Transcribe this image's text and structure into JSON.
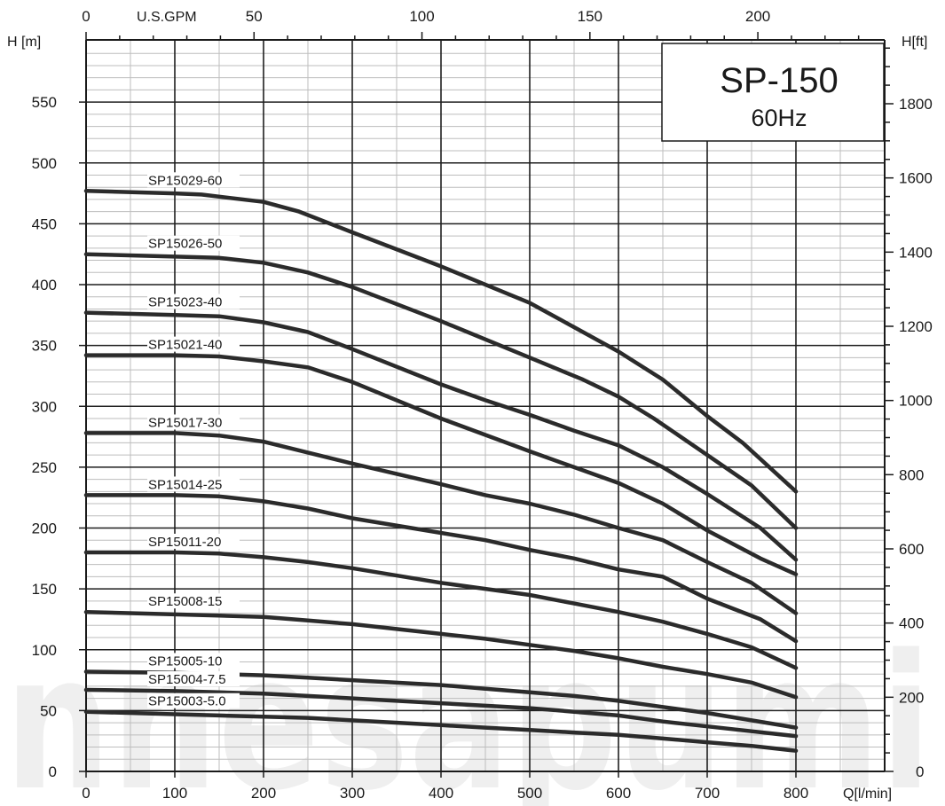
{
  "chart_data": {
    "type": "line",
    "title": "SP-150",
    "subtitle": "60Hz",
    "xlabel": "Q[l/min]",
    "ylabel": "H [m]",
    "ylabel_right": "H[ft]",
    "xlabel_top": "U.S.GPM",
    "xlim": [
      0,
      900
    ],
    "ylim": [
      0,
      600
    ],
    "x_ticks": [
      "0",
      "100",
      "200",
      "300",
      "400",
      "500",
      "600",
      "700",
      "800"
    ],
    "y_ticks": [
      "0",
      "50",
      "100",
      "150",
      "200",
      "250",
      "300",
      "350",
      "400",
      "450",
      "500",
      "550"
    ],
    "gpm_ticks": [
      "0",
      "50",
      "100",
      "150",
      "200"
    ],
    "ft_ticks": [
      "0",
      "200",
      "400",
      "600",
      "800",
      "1000",
      "1200",
      "1400",
      "1600",
      "1800"
    ],
    "grid": true,
    "series": [
      {
        "name": "SP15029-60",
        "points": [
          [
            0,
            477
          ],
          [
            100,
            475
          ],
          [
            130,
            474
          ],
          [
            200,
            468
          ],
          [
            240,
            460
          ],
          [
            300,
            443
          ],
          [
            400,
            415
          ],
          [
            500,
            385
          ],
          [
            550,
            365
          ],
          [
            600,
            345
          ],
          [
            650,
            322
          ],
          [
            700,
            292
          ],
          [
            740,
            270
          ],
          [
            800,
            230
          ]
        ]
      },
      {
        "name": "SP15026-50",
        "points": [
          [
            0,
            425
          ],
          [
            100,
            423
          ],
          [
            150,
            422
          ],
          [
            200,
            418
          ],
          [
            250,
            410
          ],
          [
            300,
            398
          ],
          [
            400,
            370
          ],
          [
            500,
            340
          ],
          [
            560,
            322
          ],
          [
            600,
            308
          ],
          [
            640,
            290
          ],
          [
            700,
            260
          ],
          [
            750,
            235
          ],
          [
            800,
            200
          ]
        ]
      },
      {
        "name": "SP15023-40",
        "points": [
          [
            0,
            377
          ],
          [
            100,
            375
          ],
          [
            150,
            374
          ],
          [
            200,
            369
          ],
          [
            250,
            361
          ],
          [
            300,
            347
          ],
          [
            400,
            318
          ],
          [
            450,
            305
          ],
          [
            500,
            293
          ],
          [
            550,
            280
          ],
          [
            600,
            268
          ],
          [
            650,
            250
          ],
          [
            700,
            228
          ],
          [
            760,
            200
          ],
          [
            800,
            174
          ]
        ]
      },
      {
        "name": "SP15021-40",
        "points": [
          [
            0,
            342
          ],
          [
            100,
            342
          ],
          [
            150,
            341
          ],
          [
            200,
            337
          ],
          [
            250,
            332
          ],
          [
            300,
            320
          ],
          [
            400,
            290
          ],
          [
            500,
            263
          ],
          [
            550,
            250
          ],
          [
            600,
            237
          ],
          [
            650,
            220
          ],
          [
            700,
            198
          ],
          [
            760,
            175
          ],
          [
            800,
            162
          ]
        ]
      },
      {
        "name": "SP15017-30",
        "points": [
          [
            0,
            278
          ],
          [
            100,
            278
          ],
          [
            150,
            276
          ],
          [
            200,
            271
          ],
          [
            250,
            262
          ],
          [
            300,
            253
          ],
          [
            400,
            236
          ],
          [
            450,
            227
          ],
          [
            500,
            220
          ],
          [
            550,
            211
          ],
          [
            600,
            200
          ],
          [
            650,
            190
          ],
          [
            700,
            172
          ],
          [
            750,
            155
          ],
          [
            800,
            130
          ]
        ]
      },
      {
        "name": "SP15014-25",
        "points": [
          [
            0,
            227
          ],
          [
            100,
            227
          ],
          [
            150,
            226
          ],
          [
            200,
            222
          ],
          [
            250,
            216
          ],
          [
            300,
            208
          ],
          [
            400,
            196
          ],
          [
            450,
            190
          ],
          [
            500,
            182
          ],
          [
            550,
            175
          ],
          [
            600,
            166
          ],
          [
            650,
            160
          ],
          [
            700,
            142
          ],
          [
            760,
            125
          ],
          [
            800,
            107
          ]
        ]
      },
      {
        "name": "SP15011-20",
        "points": [
          [
            0,
            180
          ],
          [
            100,
            180
          ],
          [
            150,
            179
          ],
          [
            200,
            176
          ],
          [
            250,
            172
          ],
          [
            300,
            167
          ],
          [
            400,
            155
          ],
          [
            450,
            150
          ],
          [
            500,
            145
          ],
          [
            550,
            138
          ],
          [
            600,
            131
          ],
          [
            650,
            123
          ],
          [
            700,
            113
          ],
          [
            750,
            102
          ],
          [
            800,
            85
          ]
        ]
      },
      {
        "name": "SP15008-15",
        "points": [
          [
            0,
            131
          ],
          [
            100,
            129
          ],
          [
            150,
            128
          ],
          [
            200,
            127
          ],
          [
            250,
            124
          ],
          [
            300,
            121
          ],
          [
            400,
            113
          ],
          [
            450,
            109
          ],
          [
            500,
            104
          ],
          [
            550,
            99
          ],
          [
            600,
            93
          ],
          [
            650,
            86
          ],
          [
            700,
            80
          ],
          [
            750,
            73
          ],
          [
            800,
            61
          ]
        ]
      },
      {
        "name": "SP15005-10",
        "points": [
          [
            0,
            82
          ],
          [
            100,
            81
          ],
          [
            150,
            80
          ],
          [
            200,
            79
          ],
          [
            250,
            77
          ],
          [
            300,
            75
          ],
          [
            400,
            71
          ],
          [
            450,
            68
          ],
          [
            500,
            65
          ],
          [
            550,
            62
          ],
          [
            600,
            58
          ],
          [
            650,
            53
          ],
          [
            700,
            48
          ],
          [
            750,
            42
          ],
          [
            800,
            36
          ]
        ]
      },
      {
        "name": "SP15004-7.5",
        "points": [
          [
            0,
            67
          ],
          [
            100,
            66
          ],
          [
            150,
            65
          ],
          [
            200,
            64
          ],
          [
            250,
            62
          ],
          [
            300,
            60
          ],
          [
            400,
            56
          ],
          [
            450,
            54
          ],
          [
            500,
            52
          ],
          [
            550,
            49
          ],
          [
            600,
            46
          ],
          [
            650,
            41
          ],
          [
            700,
            37
          ],
          [
            750,
            33
          ],
          [
            800,
            29
          ]
        ]
      },
      {
        "name": "SP15003-5.0",
        "points": [
          [
            0,
            49
          ],
          [
            100,
            47
          ],
          [
            150,
            46
          ],
          [
            200,
            45
          ],
          [
            250,
            44
          ],
          [
            300,
            42
          ],
          [
            400,
            38
          ],
          [
            450,
            36
          ],
          [
            500,
            34
          ],
          [
            550,
            32
          ],
          [
            600,
            30
          ],
          [
            650,
            27
          ],
          [
            700,
            24
          ],
          [
            750,
            21
          ],
          [
            800,
            17
          ]
        ]
      }
    ],
    "curve_color": "#2b2b2b",
    "watermark": "nnesapumi"
  }
}
